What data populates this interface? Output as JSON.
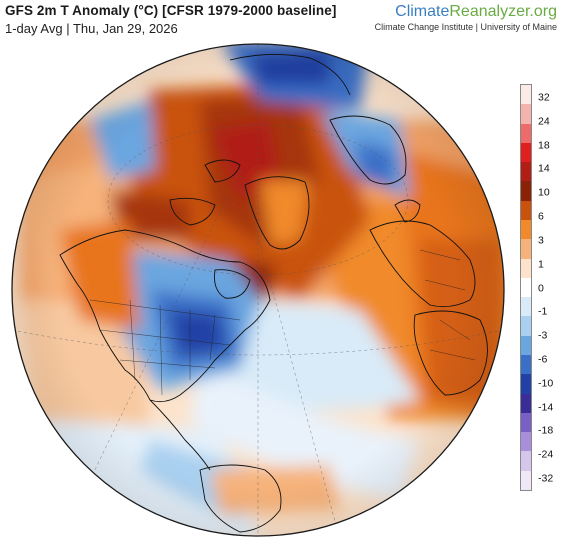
{
  "header": {
    "title": "GFS 2m T Anomaly (°C) [CFSR 1979-2000 baseline]",
    "subtitle": "1-day Avg | Thu, Jan 29, 2026"
  },
  "brand": {
    "name_part1": "Climate",
    "name_part2": "Reanalyzer",
    "name_part3": ".org",
    "tagline": "Climate Change Institute | University of Maine"
  },
  "map": {
    "projection": "orthographic",
    "variable": "2m temperature anomaly",
    "units": "°C",
    "features": [
      "coastlines",
      "country-borders",
      "us-state-borders",
      "graticule-dashed"
    ],
    "regions": [
      {
        "name": "Arctic Ocean / Greenland",
        "anomaly": "warm",
        "range": "6 to 14"
      },
      {
        "name": "Canadian Arctic / Alaska",
        "anomaly": "warm",
        "range": "3 to 10"
      },
      {
        "name": "Eastern United States",
        "anomaly": "cold",
        "range": "-6 to -14"
      },
      {
        "name": "Hudson Bay / Labrador",
        "anomaly": "warm",
        "range": "6 to 10"
      },
      {
        "name": "Northern Siberia",
        "anomaly": "cold",
        "range": "-3 to -10"
      },
      {
        "name": "Europe",
        "anomaly": "warm",
        "range": "1 to 6"
      },
      {
        "name": "North Africa / Middle East",
        "anomaly": "warm",
        "range": "3 to 6"
      },
      {
        "name": "North Atlantic",
        "anomaly": "cool",
        "range": "-1 to -3"
      },
      {
        "name": "Pacific",
        "anomaly": "mixed",
        "range": "-3 to 3"
      }
    ]
  },
  "colorbar": {
    "ticks": [
      "32",
      "24",
      "18",
      "14",
      "10",
      "6",
      "3",
      "1",
      "0",
      "-1",
      "-3",
      "-6",
      "-10",
      "-14",
      "-18",
      "-24",
      "-32"
    ],
    "colors": [
      "#fbeae6",
      "#f4b4ad",
      "#ee6b6b",
      "#e0201f",
      "#b11f14",
      "#8a2208",
      "#c9520e",
      "#f08a2c",
      "#f6b27a",
      "#fde3cb",
      "#ffffff",
      "#d9ebf8",
      "#a9d0f0",
      "#6aa6e0",
      "#3a6fc8",
      "#2240a5",
      "#3a2d98",
      "#7a5fc4",
      "#a98edc",
      "#d5c6ec",
      "#f0e8f6"
    ]
  }
}
